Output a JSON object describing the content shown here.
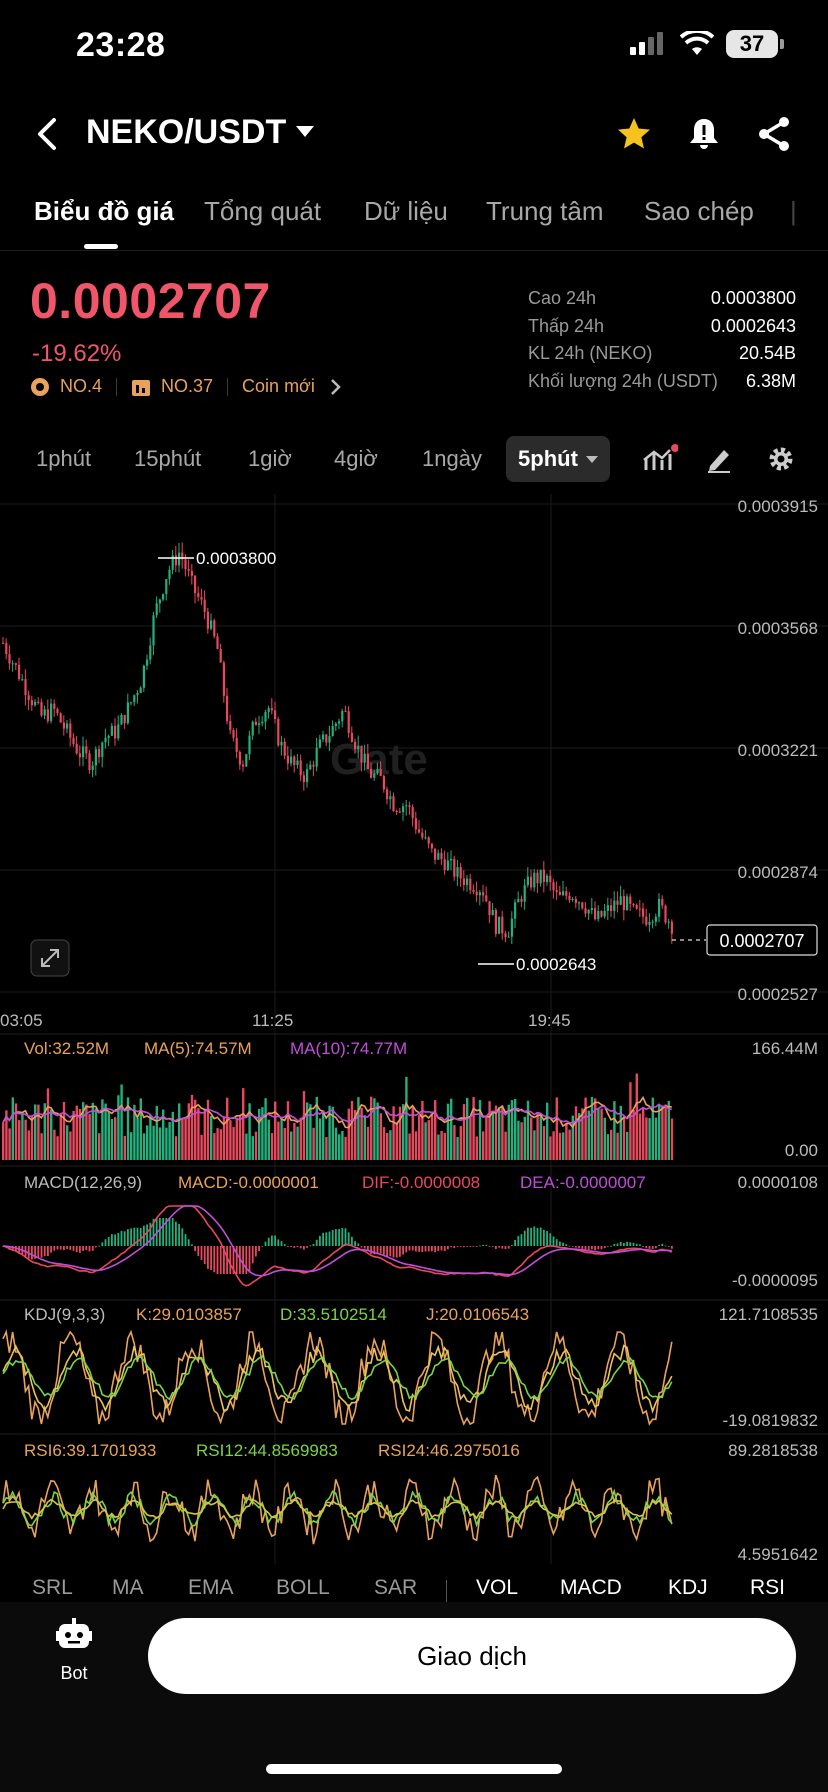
{
  "status": {
    "time": "23:28",
    "battery": "37"
  },
  "header": {
    "pair": "NEKO/USDT"
  },
  "tabs": [
    "Biểu đồ giá",
    "Tổng quát",
    "Dữ liệu",
    "Trung tâm",
    "Sao chép"
  ],
  "price": {
    "last": "0.0002707",
    "change": "-19.62%"
  },
  "tags": {
    "rank1": "NO.4",
    "rank2": "NO.37",
    "new": "Coin mới"
  },
  "stats": [
    {
      "label": "Cao 24h",
      "value": "0.0003800"
    },
    {
      "label": "Thấp 24h",
      "value": "0.0002643"
    },
    {
      "label": "KL 24h (NEKO)",
      "value": "20.54B"
    },
    {
      "label": "Khối lượng 24h (USDT)",
      "value": "6.38M"
    }
  ],
  "timeframes": [
    "1phút",
    "15phút",
    "1giờ",
    "4giờ",
    "1ngày"
  ],
  "timeframe_active": "5phút",
  "watermark": "Gate",
  "chart_data": {
    "type": "candlestick",
    "y_ticks": [
      "0.0003915",
      "0.0003568",
      "0.0003221",
      "0.0002874",
      "0.0002527"
    ],
    "x_ticks": [
      "03:05",
      "11:25",
      "19:45"
    ],
    "ylim": [
      0.0002527,
      0.0003915
    ],
    "high_marker": "0.0003800",
    "low_marker": "0.0002643",
    "last_price_tag": "0.0002707",
    "close_series": [
      0.000352,
      0.000345,
      0.000338,
      0.000331,
      0.000333,
      0.000327,
      0.000321,
      0.000318,
      0.000325,
      0.000327,
      0.000334,
      0.000342,
      0.00036,
      0.000372,
      0.000378,
      0.000368,
      0.000361,
      0.00035,
      0.000325,
      0.000318,
      0.00033,
      0.000334,
      0.000323,
      0.000317,
      0.000314,
      0.000322,
      0.000327,
      0.000333,
      0.000323,
      0.000315,
      0.000313,
      0.000306,
      0.000306,
      0.000298,
      0.000292,
      0.00029,
      0.000286,
      0.000284,
      0.000282,
      0.000272,
      0.00027,
      0.00028,
      0.000285,
      0.000285,
      0.000279,
      0.000281,
      0.000278,
      0.000273,
      0.000276,
      0.000279,
      0.000275,
      0.000274,
      0.000277,
      0.000272
    ]
  },
  "indicators": {
    "vol": {
      "vol": "Vol:32.52M",
      "ma5": "MA(5):74.57M",
      "ma10": "MA(10):74.77M",
      "top": "166.44M",
      "bottom": "0.00"
    },
    "macd": {
      "name": "MACD(12,26,9)",
      "macd": "MACD:-0.0000001",
      "dif": "DIF:-0.0000008",
      "dea": "DEA:-0.0000007",
      "top": "0.0000108",
      "bottom": "-0.0000095"
    },
    "kdj": {
      "name": "KDJ(9,3,3)",
      "k": "K:29.0103857",
      "d": "D:33.5102514",
      "j": "J:20.0106543",
      "top": "121.7108535",
      "bottom": "-19.0819832"
    },
    "rsi": {
      "rsi6": "RSI6:39.1701933",
      "rsi12": "RSI12:44.8569983",
      "rsi24": "RSI24:46.2975016",
      "top": "89.2818538",
      "bottom": "4.5951642"
    }
  },
  "indicator_tabs": [
    "SRL",
    "MA",
    "EMA",
    "BOLL",
    "SAR",
    "VOL",
    "MACD",
    "KDJ",
    "RSI"
  ],
  "bottom": {
    "bot_label": "Bot",
    "trade_label": "Giao dịch"
  },
  "colors": {
    "up": "#22b07d",
    "down": "#e8485e",
    "accent": "#f0566a",
    "ma5": "#e9a25b",
    "ma10": "#c04fd8"
  }
}
